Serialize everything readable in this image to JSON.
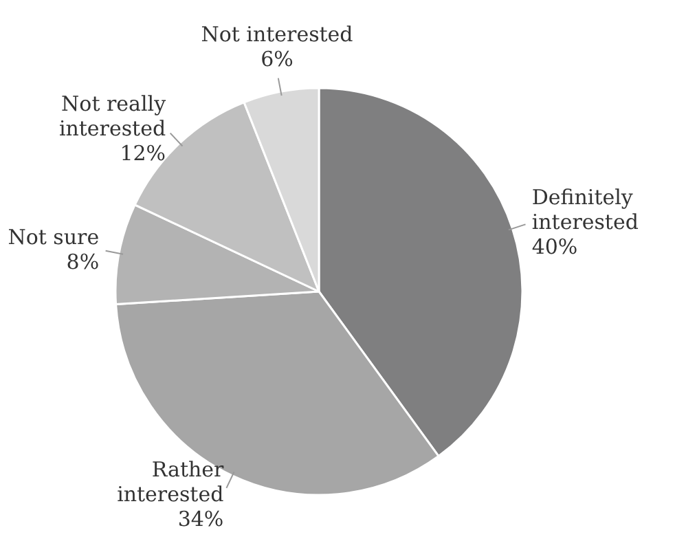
{
  "chart_data": {
    "type": "pie",
    "categories": [
      "Definitely interested",
      "Rather interested",
      "Not sure",
      "Not really interested",
      "Not interested"
    ],
    "values": [
      40,
      34,
      8,
      12,
      6
    ],
    "colors": [
      "#7f7f80",
      "#a6a6a6",
      "#b3b3b3",
      "#c0c0c0",
      "#d9d9d9"
    ],
    "value_labels": [
      "40%",
      "34%",
      "8%",
      "12%",
      "6%"
    ]
  }
}
